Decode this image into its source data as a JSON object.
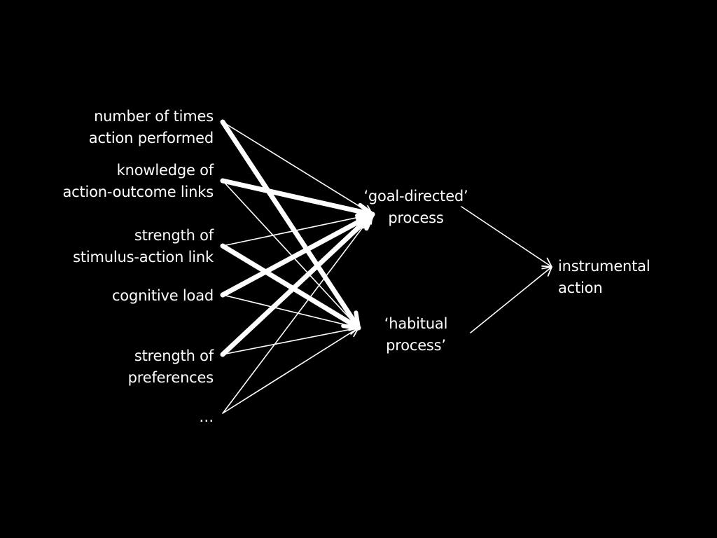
{
  "colors": {
    "background": "#000000",
    "foreground": "#ffffff"
  },
  "inputs": [
    {
      "id": "times",
      "lines": [
        "number of times",
        "action performed"
      ]
    },
    {
      "id": "knowledge",
      "lines": [
        "knowledge of",
        "action-outcome links"
      ]
    },
    {
      "id": "stimulus",
      "lines": [
        "strength of",
        "stimulus-action link"
      ]
    },
    {
      "id": "load",
      "lines": [
        "cognitive load"
      ]
    },
    {
      "id": "prefs",
      "lines": [
        "strength of",
        "preferences"
      ]
    },
    {
      "id": "more",
      "lines": [
        "…"
      ]
    }
  ],
  "processes": [
    {
      "id": "goal",
      "lines": [
        "‘goal-directed’",
        "process"
      ]
    },
    {
      "id": "habit",
      "lines": [
        "‘habitual",
        "process’"
      ]
    }
  ],
  "output": {
    "id": "action",
    "lines": [
      "instrumental",
      "action"
    ]
  },
  "edges": [
    {
      "from": "times",
      "to": "goal",
      "weight": "thin"
    },
    {
      "from": "times",
      "to": "habit",
      "weight": "thick"
    },
    {
      "from": "knowledge",
      "to": "goal",
      "weight": "thick"
    },
    {
      "from": "knowledge",
      "to": "habit",
      "weight": "thin"
    },
    {
      "from": "stimulus",
      "to": "goal",
      "weight": "thin"
    },
    {
      "from": "stimulus",
      "to": "habit",
      "weight": "thick"
    },
    {
      "from": "load",
      "to": "goal",
      "weight": "thick"
    },
    {
      "from": "load",
      "to": "habit",
      "weight": "thin"
    },
    {
      "from": "prefs",
      "to": "goal",
      "weight": "thick"
    },
    {
      "from": "prefs",
      "to": "habit",
      "weight": "thin"
    },
    {
      "from": "more",
      "to": "goal",
      "weight": "thin"
    },
    {
      "from": "more",
      "to": "habit",
      "weight": "thin"
    },
    {
      "from": "goal",
      "to": "action",
      "weight": "thin"
    },
    {
      "from": "habit",
      "to": "action",
      "weight": "thin"
    }
  ]
}
